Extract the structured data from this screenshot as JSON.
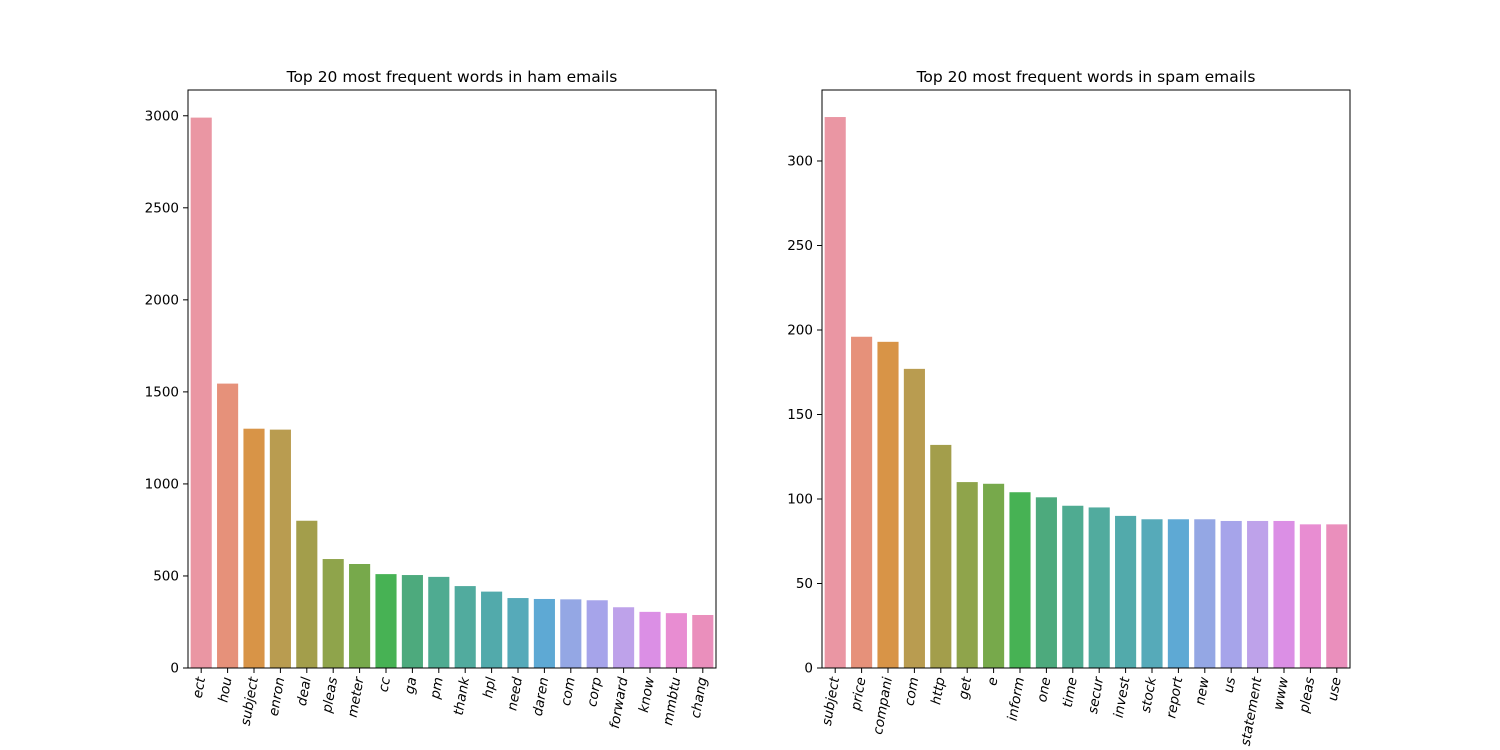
{
  "chart_data": [
    {
      "type": "bar",
      "title": "Top 20 most frequent words in ham emails",
      "xlabel": "",
      "ylabel": "",
      "categories": [
        "ect",
        "hou",
        "subject",
        "enron",
        "deal",
        "pleas",
        "meter",
        "cc",
        "ga",
        "pm",
        "thank",
        "hpl",
        "need",
        "daren",
        "com",
        "corp",
        "forward",
        "know",
        "mmbtu",
        "chang"
      ],
      "values": [
        2990,
        1545,
        1300,
        1295,
        800,
        592,
        565,
        510,
        505,
        495,
        445,
        415,
        380,
        375,
        373,
        368,
        330,
        305,
        298,
        288
      ],
      "colors": [
        "#ea96a3",
        "#e6917a",
        "#d89447",
        "#b99c50",
        "#a39e4b",
        "#8fa44b",
        "#77a94b",
        "#47b254",
        "#4daa7d",
        "#4fab91",
        "#51ab9e",
        "#52aaab",
        "#56aab9",
        "#5ea9d4",
        "#94a7e4",
        "#a6a4ea",
        "#bea2ea",
        "#db8fe5",
        "#e88dd2",
        "#ea8fbc"
      ],
      "ylim": [
        0,
        3140
      ],
      "yticks": [
        0,
        500,
        1000,
        1500,
        2000,
        2500,
        3000
      ],
      "grid": false,
      "legend": "none"
    },
    {
      "type": "bar",
      "title": "Top 20 most frequent words in spam emails",
      "xlabel": "",
      "ylabel": "",
      "categories": [
        "subject",
        "price",
        "compani",
        "com",
        "http",
        "get",
        "e",
        "inform",
        "one",
        "time",
        "secur",
        "invest",
        "stock",
        "report",
        "new",
        "us",
        "statement",
        "www",
        "pleas",
        "use"
      ],
      "values": [
        326,
        196,
        193,
        177,
        132,
        110,
        109,
        104,
        101,
        96,
        95,
        90,
        88,
        88,
        88,
        87,
        87,
        87,
        85,
        85
      ],
      "colors": [
        "#ea96a3",
        "#e6917a",
        "#d89447",
        "#b99c50",
        "#a39e4b",
        "#8fa44b",
        "#77a94b",
        "#47b254",
        "#4daa7d",
        "#4fab91",
        "#51ab9e",
        "#52aaab",
        "#56aab9",
        "#5ea9d4",
        "#94a7e4",
        "#a6a4ea",
        "#bea2ea",
        "#db8fe5",
        "#e88dd2",
        "#ea8fbc"
      ],
      "ylim": [
        0,
        342
      ],
      "yticks": [
        0,
        50,
        100,
        150,
        200,
        250,
        300
      ],
      "grid": false,
      "legend": "none"
    }
  ]
}
